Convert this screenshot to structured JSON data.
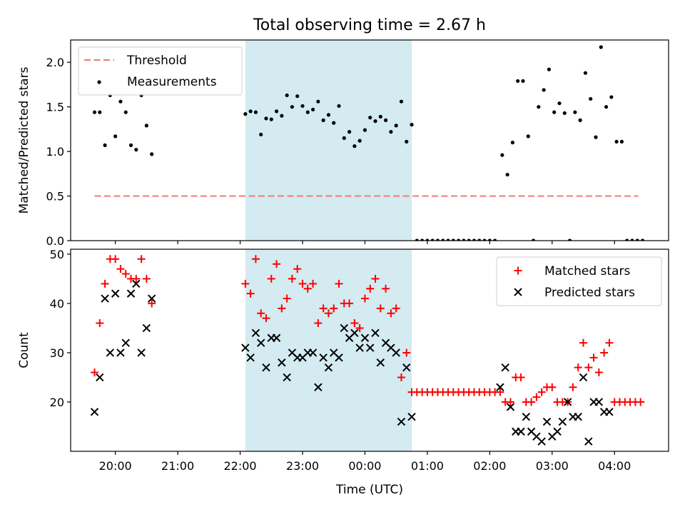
{
  "chart_data": [
    {
      "type": "scatter",
      "title": "Total observing time = 2.67 h",
      "ylabel": "Matched/Predicted stars",
      "xlim": [
        "19:17",
        "04:52"
      ],
      "ylim": [
        0.0,
        2.25
      ],
      "yticks": [
        "0.0",
        "0.5",
        "1.0",
        "1.5",
        "2.0"
      ],
      "highlight_span": {
        "start": "22:05",
        "end": "00:45",
        "color": "#d3ebf1"
      },
      "legend": {
        "placement": "top-left",
        "entries": [
          "Threshold",
          "Measurements"
        ]
      },
      "threshold": {
        "name": "Threshold",
        "y": 0.5,
        "x_start": "19:40",
        "x_end": "04:23",
        "color": "#f08080",
        "style": "dashed"
      },
      "series": [
        {
          "name": "Measurements",
          "color": "#000000",
          "marker": "dot",
          "points": [
            [
              "19:40",
              1.44
            ],
            [
              "19:45",
              1.44
            ],
            [
              "19:50",
              1.07
            ],
            [
              "19:55",
              1.63
            ],
            [
              "20:00",
              1.17
            ],
            [
              "20:05",
              1.56
            ],
            [
              "20:10",
              1.44
            ],
            [
              "20:15",
              1.07
            ],
            [
              "20:20",
              1.02
            ],
            [
              "20:25",
              1.63
            ],
            [
              "20:30",
              1.29
            ],
            [
              "20:35",
              0.97
            ],
            [
              "22:05",
              1.42
            ],
            [
              "22:10",
              1.45
            ],
            [
              "22:15",
              1.44
            ],
            [
              "22:20",
              1.19
            ],
            [
              "22:25",
              1.37
            ],
            [
              "22:30",
              1.36
            ],
            [
              "22:35",
              1.45
            ],
            [
              "22:40",
              1.4
            ],
            [
              "22:45",
              1.63
            ],
            [
              "22:50",
              1.5
            ],
            [
              "22:55",
              1.62
            ],
            [
              "23:00",
              1.51
            ],
            [
              "23:05",
              1.44
            ],
            [
              "23:10",
              1.47
            ],
            [
              "23:15",
              1.56
            ],
            [
              "23:20",
              1.35
            ],
            [
              "23:25",
              1.41
            ],
            [
              "23:30",
              1.32
            ],
            [
              "23:35",
              1.51
            ],
            [
              "23:40",
              1.15
            ],
            [
              "23:45",
              1.22
            ],
            [
              "23:50",
              1.06
            ],
            [
              "23:55",
              1.12
            ],
            [
              "00:00",
              1.24
            ],
            [
              "00:05",
              1.38
            ],
            [
              "00:10",
              1.34
            ],
            [
              "00:15",
              1.39
            ],
            [
              "00:20",
              1.35
            ],
            [
              "00:25",
              1.22
            ],
            [
              "00:30",
              1.29
            ],
            [
              "00:35",
              1.56
            ],
            [
              "00:40",
              1.11
            ],
            [
              "00:45",
              1.3
            ],
            [
              "00:50",
              0.0
            ],
            [
              "00:55",
              0.0
            ],
            [
              "01:00",
              0.0
            ],
            [
              "01:05",
              0.0
            ],
            [
              "01:10",
              0.0
            ],
            [
              "01:15",
              0.0
            ],
            [
              "01:20",
              0.0
            ],
            [
              "01:25",
              0.0
            ],
            [
              "01:30",
              0.0
            ],
            [
              "01:35",
              0.0
            ],
            [
              "01:40",
              0.0
            ],
            [
              "01:45",
              0.0
            ],
            [
              "01:50",
              0.0
            ],
            [
              "01:55",
              0.0
            ],
            [
              "02:00",
              0.0
            ],
            [
              "02:05",
              0.0
            ],
            [
              "02:12",
              0.96
            ],
            [
              "02:17",
              0.74
            ],
            [
              "02:22",
              1.1
            ],
            [
              "02:27",
              1.79
            ],
            [
              "02:32",
              1.79
            ],
            [
              "02:37",
              1.17
            ],
            [
              "02:42",
              0.0
            ],
            [
              "02:47",
              1.5
            ],
            [
              "02:52",
              1.69
            ],
            [
              "02:57",
              1.92
            ],
            [
              "03:02",
              1.44
            ],
            [
              "03:07",
              1.54
            ],
            [
              "03:12",
              1.43
            ],
            [
              "03:17",
              0.0
            ],
            [
              "03:22",
              1.44
            ],
            [
              "03:27",
              1.35
            ],
            [
              "03:32",
              1.88
            ],
            [
              "03:37",
              1.59
            ],
            [
              "03:42",
              1.16
            ],
            [
              "03:47",
              2.17
            ],
            [
              "03:52",
              1.5
            ],
            [
              "03:57",
              1.61
            ],
            [
              "04:02",
              1.11
            ],
            [
              "04:07",
              1.11
            ],
            [
              "04:12",
              0.0
            ],
            [
              "04:17",
              0.0
            ],
            [
              "04:22",
              0.0
            ],
            [
              "04:27",
              0.0
            ]
          ]
        }
      ]
    },
    {
      "type": "scatter",
      "xlabel": "Time (UTC)",
      "ylabel": "Count",
      "xlim": [
        "19:17",
        "04:52"
      ],
      "ylim": [
        10,
        51
      ],
      "yticks": [
        "20",
        "30",
        "40",
        "50"
      ],
      "xticks": [
        "20:00",
        "21:00",
        "22:00",
        "23:00",
        "00:00",
        "01:00",
        "02:00",
        "03:00",
        "04:00"
      ],
      "highlight_span": {
        "start": "22:05",
        "end": "00:45",
        "color": "#d3ebf1"
      },
      "legend": {
        "placement": "top-right",
        "entries": [
          "Matched stars",
          "Predicted stars"
        ]
      },
      "series": [
        {
          "name": "Matched stars",
          "color": "#ff0000",
          "marker": "plus",
          "points": [
            [
              "19:40",
              26
            ],
            [
              "19:45",
              36
            ],
            [
              "19:50",
              44
            ],
            [
              "19:55",
              49
            ],
            [
              "20:00",
              49
            ],
            [
              "20:05",
              47
            ],
            [
              "20:10",
              46
            ],
            [
              "20:15",
              45
            ],
            [
              "20:20",
              45
            ],
            [
              "20:25",
              49
            ],
            [
              "20:30",
              45
            ],
            [
              "20:35",
              40
            ],
            [
              "22:05",
              44
            ],
            [
              "22:10",
              42
            ],
            [
              "22:15",
              49
            ],
            [
              "22:20",
              38
            ],
            [
              "22:25",
              37
            ],
            [
              "22:30",
              45
            ],
            [
              "22:35",
              48
            ],
            [
              "22:40",
              39
            ],
            [
              "22:45",
              41
            ],
            [
              "22:50",
              45
            ],
            [
              "22:55",
              47
            ],
            [
              "23:00",
              44
            ],
            [
              "23:05",
              43
            ],
            [
              "23:10",
              44
            ],
            [
              "23:15",
              36
            ],
            [
              "23:20",
              39
            ],
            [
              "23:25",
              38
            ],
            [
              "23:30",
              39
            ],
            [
              "23:35",
              44
            ],
            [
              "23:40",
              40
            ],
            [
              "23:45",
              40
            ],
            [
              "23:50",
              36
            ],
            [
              "23:55",
              35
            ],
            [
              "00:00",
              41
            ],
            [
              "00:05",
              43
            ],
            [
              "00:10",
              45
            ],
            [
              "00:15",
              39
            ],
            [
              "00:20",
              43
            ],
            [
              "00:25",
              38
            ],
            [
              "00:30",
              39
            ],
            [
              "00:35",
              25
            ],
            [
              "00:40",
              30
            ],
            [
              "00:45",
              22
            ],
            [
              "00:50",
              22
            ],
            [
              "00:55",
              22
            ],
            [
              "01:00",
              22
            ],
            [
              "01:05",
              22
            ],
            [
              "01:10",
              22
            ],
            [
              "01:15",
              22
            ],
            [
              "01:20",
              22
            ],
            [
              "01:25",
              22
            ],
            [
              "01:30",
              22
            ],
            [
              "01:35",
              22
            ],
            [
              "01:40",
              22
            ],
            [
              "01:45",
              22
            ],
            [
              "01:50",
              22
            ],
            [
              "01:55",
              22
            ],
            [
              "02:00",
              22
            ],
            [
              "02:05",
              22
            ],
            [
              "02:10",
              22
            ],
            [
              "02:15",
              20
            ],
            [
              "02:20",
              20
            ],
            [
              "02:25",
              25
            ],
            [
              "02:30",
              25
            ],
            [
              "02:35",
              20
            ],
            [
              "02:40",
              20
            ],
            [
              "02:45",
              21
            ],
            [
              "02:50",
              22
            ],
            [
              "02:55",
              23
            ],
            [
              "03:00",
              23
            ],
            [
              "03:05",
              20
            ],
            [
              "03:10",
              20
            ],
            [
              "03:15",
              20
            ],
            [
              "03:20",
              23
            ],
            [
              "03:25",
              27
            ],
            [
              "03:30",
              32
            ],
            [
              "03:35",
              27
            ],
            [
              "03:40",
              29
            ],
            [
              "03:45",
              26
            ],
            [
              "03:50",
              30
            ],
            [
              "03:55",
              32
            ],
            [
              "04:00",
              20
            ],
            [
              "04:05",
              20
            ],
            [
              "04:10",
              20
            ],
            [
              "04:15",
              20
            ],
            [
              "04:20",
              20
            ],
            [
              "04:25",
              20
            ]
          ]
        },
        {
          "name": "Predicted stars",
          "color": "#000000",
          "marker": "x",
          "points": [
            [
              "19:40",
              18
            ],
            [
              "19:45",
              25
            ],
            [
              "19:50",
              41
            ],
            [
              "19:55",
              30
            ],
            [
              "20:00",
              42
            ],
            [
              "20:05",
              30
            ],
            [
              "20:10",
              32
            ],
            [
              "20:15",
              42
            ],
            [
              "20:20",
              44
            ],
            [
              "20:25",
              30
            ],
            [
              "20:30",
              35
            ],
            [
              "20:35",
              41
            ],
            [
              "22:05",
              31
            ],
            [
              "22:10",
              29
            ],
            [
              "22:15",
              34
            ],
            [
              "22:20",
              32
            ],
            [
              "22:25",
              27
            ],
            [
              "22:30",
              33
            ],
            [
              "22:35",
              33
            ],
            [
              "22:40",
              28
            ],
            [
              "22:45",
              25
            ],
            [
              "22:50",
              30
            ],
            [
              "22:55",
              29
            ],
            [
              "23:00",
              29
            ],
            [
              "23:05",
              30
            ],
            [
              "23:10",
              30
            ],
            [
              "23:15",
              23
            ],
            [
              "23:20",
              29
            ],
            [
              "23:25",
              27
            ],
            [
              "23:30",
              30
            ],
            [
              "23:35",
              29
            ],
            [
              "23:40",
              35
            ],
            [
              "23:45",
              33
            ],
            [
              "23:50",
              34
            ],
            [
              "23:55",
              31
            ],
            [
              "00:00",
              33
            ],
            [
              "00:05",
              31
            ],
            [
              "00:10",
              34
            ],
            [
              "00:15",
              28
            ],
            [
              "00:20",
              32
            ],
            [
              "00:25",
              31
            ],
            [
              "00:30",
              30
            ],
            [
              "00:35",
              16
            ],
            [
              "00:40",
              27
            ],
            [
              "00:45",
              17
            ],
            [
              "02:10",
              23
            ],
            [
              "02:15",
              27
            ],
            [
              "02:20",
              19
            ],
            [
              "02:25",
              14
            ],
            [
              "02:30",
              14
            ],
            [
              "02:35",
              17
            ],
            [
              "02:40",
              14
            ],
            [
              "02:45",
              13
            ],
            [
              "02:50",
              12
            ],
            [
              "02:55",
              16
            ],
            [
              "03:00",
              13
            ],
            [
              "03:05",
              14
            ],
            [
              "03:10",
              16
            ],
            [
              "03:15",
              20
            ],
            [
              "03:20",
              17
            ],
            [
              "03:25",
              17
            ],
            [
              "03:30",
              25
            ],
            [
              "03:35",
              12
            ],
            [
              "03:40",
              20
            ],
            [
              "03:45",
              20
            ],
            [
              "03:50",
              18
            ],
            [
              "03:55",
              18
            ]
          ]
        }
      ]
    }
  ]
}
